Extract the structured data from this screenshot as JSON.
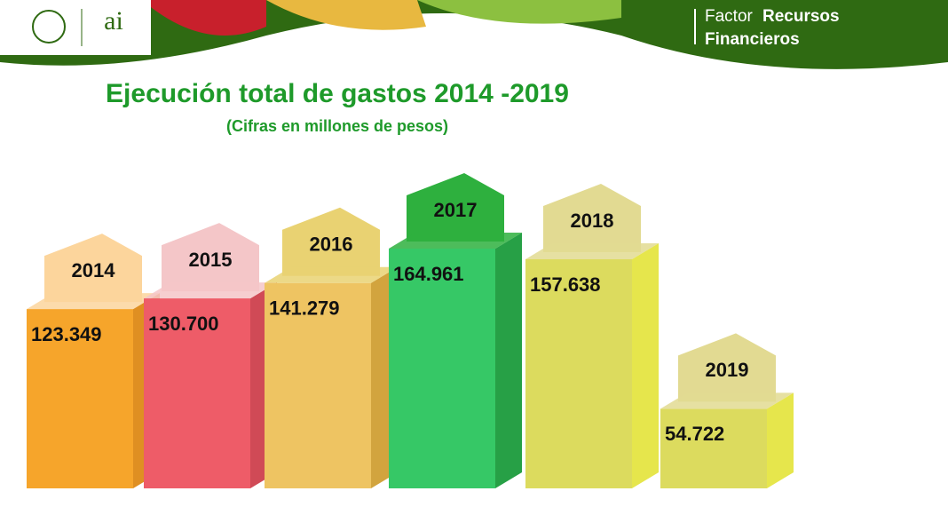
{
  "header": {
    "logo_text": "ai",
    "factor": "Factor",
    "recursos": "Recursos",
    "financieros": "Financieros"
  },
  "chart_data": {
    "type": "bar3d",
    "title": "Ejecución total de gastos 2014 -2019",
    "subtitle": "(Cifras en millones de pesos)",
    "categories": [
      "2014",
      "2015",
      "2016",
      "2017",
      "2018",
      "2019"
    ],
    "values": [
      123349,
      130700,
      141279,
      164961,
      157638,
      54722
    ],
    "value_labels": [
      "123.349",
      "130.700",
      "141.279",
      "164.961",
      "157.638",
      "54.722"
    ],
    "colors": [
      "#f6a52b",
      "#ee5c68",
      "#eec462",
      "#36c866",
      "#dcdb5e",
      "#dcdb5e"
    ],
    "side_colors": [
      "#df8f22",
      "#d04a56",
      "#d2a43e",
      "#27a046",
      "#e6e64c",
      "#e6e64c"
    ],
    "label_colors": [
      "#fcd59c",
      "#f4c6c8",
      "#e9d272",
      "#2eb03e",
      "#e2da92",
      "#e2da92"
    ]
  }
}
